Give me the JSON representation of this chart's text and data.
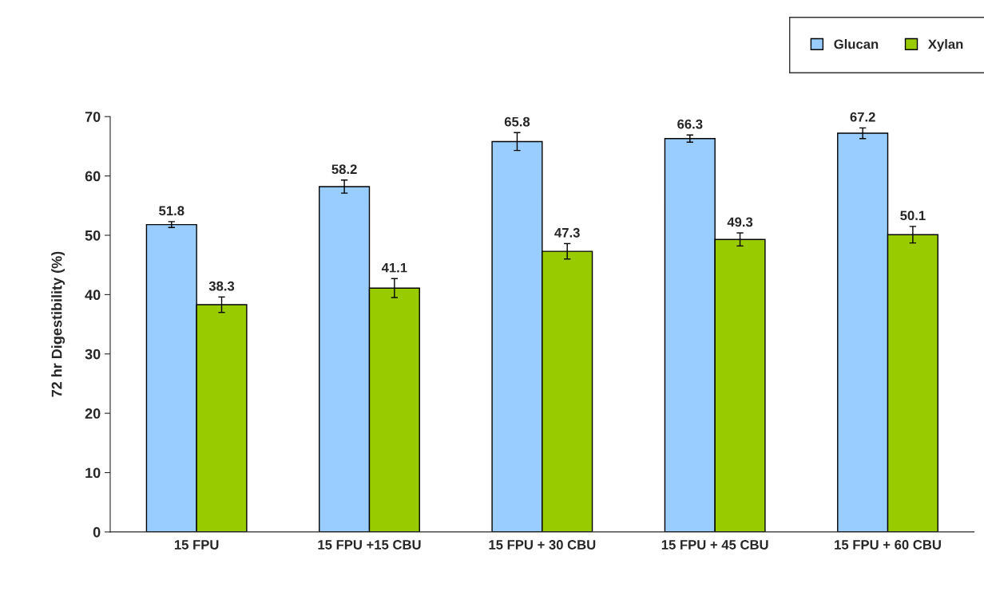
{
  "chart_data": {
    "type": "bar",
    "ylabel": "72 hr Digestibility (%)",
    "categories": [
      "15 FPU",
      "15 FPU +15 CBU",
      "15 FPU + 30 CBU",
      "15 FPU + 45 CBU",
      "15 FPU + 60 CBU"
    ],
    "series": [
      {
        "name": "Glucan",
        "color": "#99ccff",
        "values": [
          51.8,
          58.2,
          65.8,
          66.3,
          67.2
        ],
        "errors": [
          0.5,
          1.1,
          1.5,
          0.6,
          0.9
        ]
      },
      {
        "name": "Xylan",
        "color": "#99cc00",
        "values": [
          38.3,
          41.1,
          47.3,
          49.3,
          50.1
        ],
        "errors": [
          1.3,
          1.6,
          1.3,
          1.1,
          1.4
        ]
      }
    ],
    "ylim": [
      0,
      70
    ],
    "yticks": [
      0,
      10,
      20,
      30,
      40,
      50,
      60,
      70
    ],
    "grid": false,
    "legend": "top right",
    "data_labels": true
  }
}
